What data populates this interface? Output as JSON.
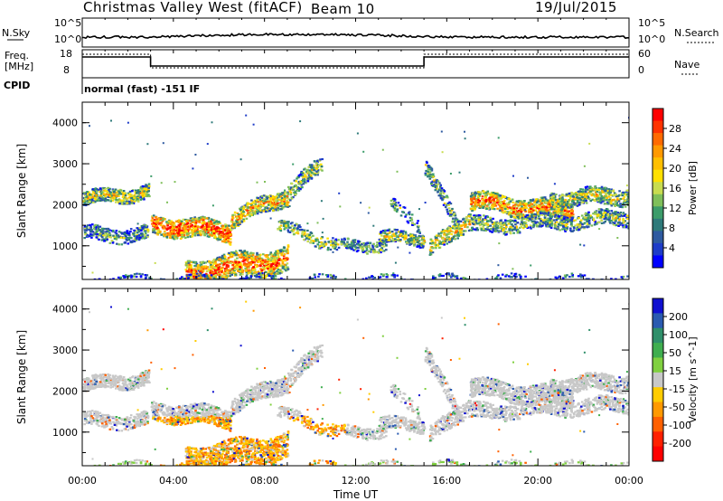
{
  "header": {
    "station": "Christmas Valley West (fitACF)",
    "beam": "Beam 10",
    "date": "19/Jul/2015"
  },
  "panels": {
    "noise": {
      "left_label": "N.Sky",
      "right_label": "N.Search",
      "ticks_left": [
        "10^5",
        "10^0"
      ],
      "ticks_right": [
        "10^5",
        "10^0"
      ]
    },
    "freq": {
      "left_label_1": "Freq.",
      "left_label_2": "[MHz]",
      "right_label": "Nave",
      "ticks_left": [
        "18",
        "8"
      ],
      "ticks_right": [
        "60",
        "0"
      ]
    },
    "cpid": {
      "label": "CPID",
      "value": "normal (fast) -151 IF"
    }
  },
  "chart_data": [
    {
      "type": "heatmap",
      "title": "",
      "ylabel": "Slant Range [km]",
      "xlabel": "",
      "ylim": [
        180,
        4500
      ],
      "yticks": [
        "1000",
        "2000",
        "3000",
        "4000"
      ],
      "colorbar": {
        "label": "Power [dB]",
        "ticks": [
          "28",
          "24",
          "20",
          "16",
          "12",
          "8",
          "4"
        ],
        "colors": [
          "#ff0000",
          "#ff3300",
          "#ff6a00",
          "#ff9900",
          "#ffbf00",
          "#ffe000",
          "#c8dc50",
          "#7fbf5a",
          "#3c9c6a",
          "#2e7a7a",
          "#2e5aa0",
          "#1e3cc8",
          "#0000ff"
        ]
      }
    },
    {
      "type": "heatmap",
      "title": "",
      "ylabel": "Slant Range [km]",
      "xlabel": "Time UT",
      "ylim": [
        180,
        4500
      ],
      "yticks": [
        "1000",
        "2000",
        "3000",
        "4000"
      ],
      "xticks": [
        "00:00",
        "04:00",
        "08:00",
        "12:00",
        "16:00",
        "20:00",
        "00:00"
      ],
      "colorbar": {
        "label": "Velocity [m s^-1]",
        "ticks": [
          "200",
          "100",
          "50",
          "15",
          "-15",
          "-50",
          "-100",
          "-200"
        ],
        "colors": [
          "#1010d0",
          "#2a5ab0",
          "#2f8f6a",
          "#3fae4f",
          "#80d040",
          "#c8c8c8",
          "#ffcc00",
          "#ff9900",
          "#ff6000",
          "#ff2000",
          "#ff0000"
        ]
      }
    }
  ]
}
